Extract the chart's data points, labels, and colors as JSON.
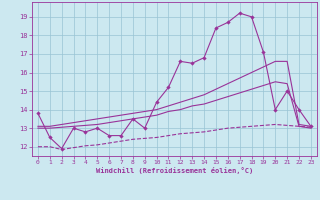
{
  "xlabel": "Windchill (Refroidissement éolien,°C)",
  "background_color": "#cce8f0",
  "grid_color": "#99c4d4",
  "line_color": "#993399",
  "xlim": [
    -0.5,
    23.5
  ],
  "ylim": [
    11.5,
    19.8
  ],
  "xticks": [
    0,
    1,
    2,
    3,
    4,
    5,
    6,
    7,
    8,
    9,
    10,
    11,
    12,
    13,
    14,
    15,
    16,
    17,
    18,
    19,
    20,
    21,
    22,
    23
  ],
  "yticks": [
    12,
    13,
    14,
    15,
    16,
    17,
    18,
    19
  ],
  "line1_x": [
    0,
    1,
    2,
    3,
    4,
    5,
    6,
    7,
    8,
    9,
    10,
    11,
    12,
    13,
    14,
    15,
    16,
    17,
    18,
    19,
    20,
    21,
    22,
    23
  ],
  "line1_y": [
    13.8,
    12.5,
    11.9,
    13.0,
    12.8,
    13.0,
    12.6,
    12.6,
    13.5,
    13.0,
    14.4,
    15.2,
    16.6,
    16.5,
    16.8,
    18.4,
    18.7,
    19.2,
    19.0,
    17.1,
    14.0,
    15.0,
    14.0,
    13.1
  ],
  "line2_x": [
    0,
    1,
    2,
    3,
    4,
    5,
    6,
    7,
    8,
    9,
    10,
    11,
    12,
    13,
    14,
    15,
    16,
    17,
    18,
    19,
    20,
    21,
    22,
    23
  ],
  "line2_y": [
    13.1,
    13.1,
    13.2,
    13.3,
    13.4,
    13.5,
    13.6,
    13.7,
    13.8,
    13.9,
    14.0,
    14.2,
    14.4,
    14.6,
    14.8,
    15.1,
    15.4,
    15.7,
    16.0,
    16.3,
    16.6,
    16.6,
    13.2,
    13.1
  ],
  "line3_x": [
    0,
    1,
    2,
    3,
    4,
    5,
    6,
    7,
    8,
    9,
    10,
    11,
    12,
    13,
    14,
    15,
    16,
    17,
    18,
    19,
    20,
    21,
    22,
    23
  ],
  "line3_y": [
    13.0,
    13.0,
    13.05,
    13.1,
    13.15,
    13.2,
    13.3,
    13.4,
    13.5,
    13.6,
    13.7,
    13.9,
    14.0,
    14.2,
    14.3,
    14.5,
    14.7,
    14.9,
    15.1,
    15.3,
    15.5,
    15.4,
    13.1,
    13.0
  ],
  "line4_x": [
    0,
    1,
    2,
    3,
    4,
    5,
    6,
    7,
    8,
    9,
    10,
    11,
    12,
    13,
    14,
    15,
    16,
    17,
    18,
    19,
    20,
    21,
    22,
    23
  ],
  "line4_y": [
    12.0,
    12.0,
    11.85,
    11.95,
    12.05,
    12.1,
    12.2,
    12.3,
    12.4,
    12.45,
    12.5,
    12.6,
    12.7,
    12.75,
    12.8,
    12.9,
    13.0,
    13.05,
    13.1,
    13.15,
    13.2,
    13.15,
    13.1,
    13.05
  ]
}
